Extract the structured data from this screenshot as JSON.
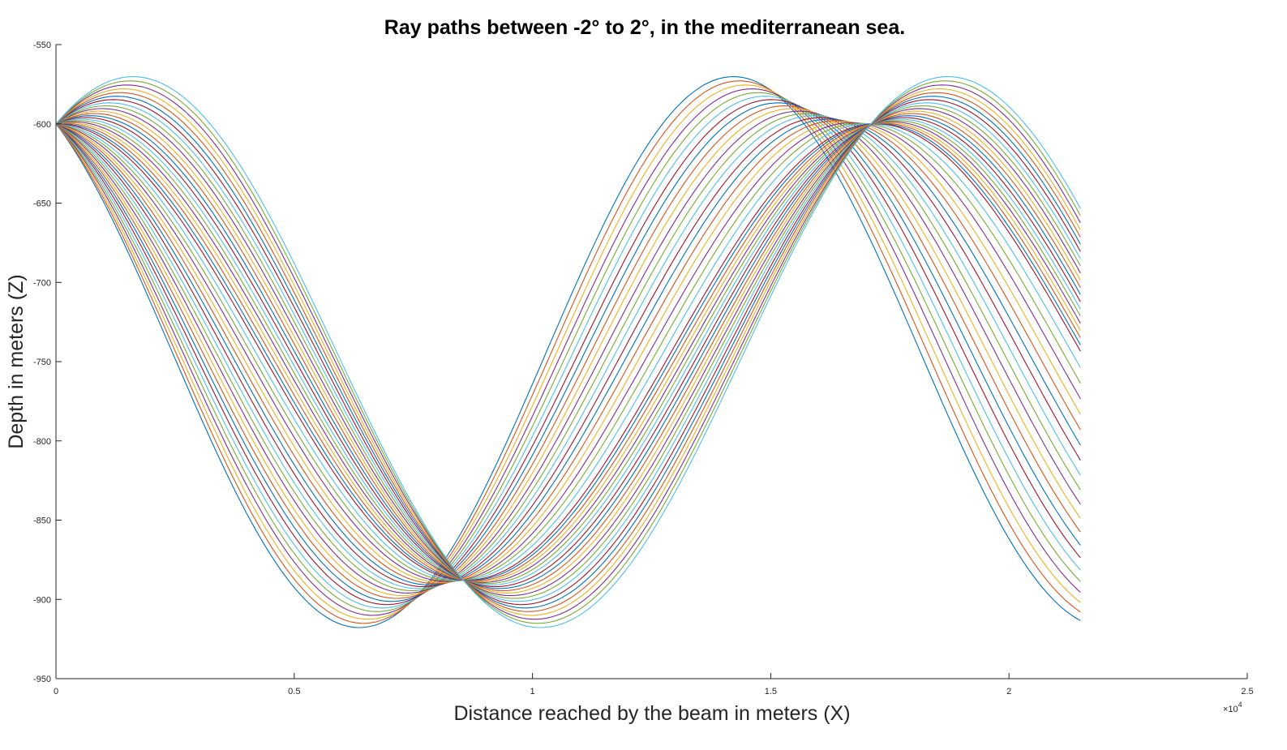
{
  "chart_data": {
    "type": "line",
    "title": "Ray paths between -2° to 2°, in the mediterranean sea.",
    "xlabel": "Distance reached by the beam in meters (X)",
    "ylabel": "Depth in meters (Z)",
    "x_multiplier_label": "×10",
    "x_multiplier_exponent": "4",
    "xlim": [
      0,
      2.5
    ],
    "ylim": [
      -950,
      -550
    ],
    "x_ticks": [
      0,
      0.5,
      1,
      1.5,
      2,
      2.5
    ],
    "x_tick_labels": [
      "0",
      "0.5",
      "1",
      "1.5",
      "2",
      "2.5"
    ],
    "y_ticks": [
      -550,
      -600,
      -650,
      -700,
      -750,
      -800,
      -850,
      -900,
      -950
    ],
    "y_tick_labels": [
      "-550",
      "-600",
      "-650",
      "-700",
      "-750",
      "-800",
      "-850",
      "-900",
      "-950"
    ],
    "grid": false,
    "legend": "none",
    "source_depth": -600,
    "max_range": 2.15,
    "ray_count": 41,
    "ray_parameters": {
      "shallowest_turning_depth": -566,
      "deepest_turning_depth_down": -913,
      "deepest_turning_depth_up": -913,
      "focus_point": [
        0.87,
        -860
      ],
      "second_focus_point": [
        1.7,
        -598
      ]
    },
    "series_colors": [
      "#0072bd",
      "#d95319",
      "#edb120",
      "#7e2f8e",
      "#77ac30",
      "#4dbeee",
      "#a2142f"
    ]
  }
}
